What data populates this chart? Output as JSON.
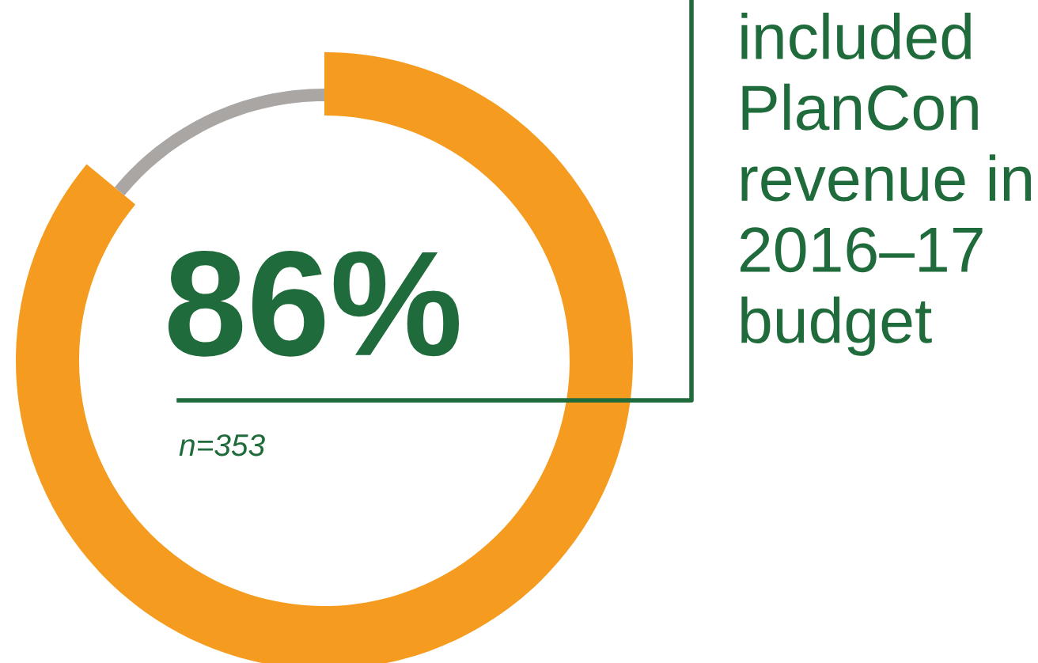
{
  "chart_data": {
    "type": "donut",
    "title": "included\nPlanCon\nrevenue in\n2016–17\nbudget",
    "categories": [
      null,
      null
    ],
    "values": [
      86,
      14
    ],
    "colors": [
      "#f59c20",
      "#a9a6a4"
    ],
    "value_labels": [
      "86%",
      null
    ],
    "annotations": [
      "n=353"
    ]
  }
}
